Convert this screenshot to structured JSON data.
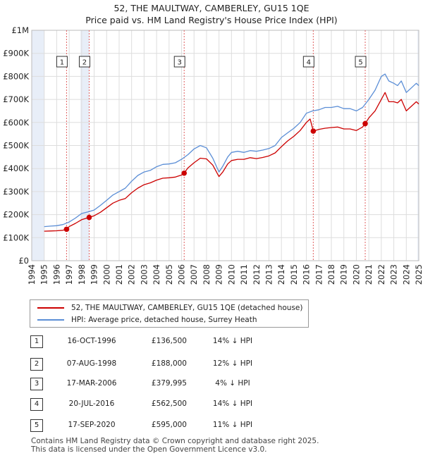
{
  "header": {
    "title": "52, THE MAULTWAY, CAMBERLEY, GU15 1QE",
    "subtitle": "Price paid vs. HM Land Registry's House Price Index (HPI)"
  },
  "colors": {
    "property": "#cc0000",
    "hpi": "#5b8ed6",
    "marker_line": "#e06060",
    "shade": "#e8eef8"
  },
  "legend": {
    "property_label": "52, THE MAULTWAY, CAMBERLEY, GU15 1QE (detached house)",
    "hpi_label": "HPI: Average price, detached house, Surrey Heath"
  },
  "chart_data": {
    "type": "line",
    "title": "52, THE MAULTWAY, CAMBERLEY, GU15 1QE",
    "xlim": [
      1994,
      2025
    ],
    "ylim": [
      0,
      1000000
    ],
    "y_ticks": [
      0,
      100000,
      200000,
      300000,
      400000,
      500000,
      600000,
      700000,
      800000,
      900000,
      1000000
    ],
    "y_tick_labels": [
      "£0",
      "£100K",
      "£200K",
      "£300K",
      "£400K",
      "£500K",
      "£600K",
      "£700K",
      "£800K",
      "£900K",
      "£1M"
    ],
    "x_ticks": [
      1994,
      1995,
      1996,
      1997,
      1998,
      1999,
      2000,
      2001,
      2002,
      2003,
      2004,
      2005,
      2006,
      2007,
      2008,
      2009,
      2010,
      2011,
      2012,
      2013,
      2014,
      2015,
      2016,
      2017,
      2018,
      2019,
      2020,
      2021,
      2022,
      2023,
      2024,
      2025
    ],
    "grid": true,
    "shaded_ranges": [
      [
        1994,
        1995
      ],
      [
        1997.9,
        1998.6
      ],
      [
        2024.9,
        2025
      ]
    ],
    "series": [
      {
        "name": "HPI: Average price, detached house, Surrey Heath",
        "x": [
          1995,
          1995.5,
          1996,
          1996.5,
          1997,
          1997.5,
          1998,
          1998.5,
          1999,
          1999.5,
          2000,
          2000.5,
          2001,
          2001.5,
          2002,
          2002.5,
          2003,
          2003.5,
          2004,
          2004.5,
          2005,
          2005.5,
          2006,
          2006.5,
          2007,
          2007.5,
          2008,
          2008.5,
          2009,
          2009.3,
          2009.7,
          2010,
          2010.5,
          2011,
          2011.5,
          2012,
          2012.5,
          2013,
          2013.5,
          2014,
          2014.5,
          2015,
          2015.5,
          2016,
          2016.5,
          2017,
          2017.5,
          2018,
          2018.5,
          2019,
          2019.5,
          2020,
          2020.5,
          2021,
          2021.5,
          2022,
          2022.3,
          2022.6,
          2023,
          2023.3,
          2023.6,
          2024,
          2024.4,
          2024.8,
          2025
        ],
        "values": [
          148000,
          150000,
          152000,
          157000,
          168000,
          185000,
          205000,
          212000,
          220000,
          240000,
          262000,
          285000,
          300000,
          315000,
          345000,
          370000,
          385000,
          392000,
          408000,
          418000,
          420000,
          425000,
          440000,
          460000,
          485000,
          500000,
          490000,
          445000,
          385000,
          410000,
          450000,
          470000,
          475000,
          470000,
          478000,
          475000,
          480000,
          487000,
          500000,
          535000,
          555000,
          575000,
          600000,
          640000,
          650000,
          655000,
          665000,
          665000,
          670000,
          660000,
          660000,
          650000,
          665000,
          700000,
          740000,
          800000,
          810000,
          780000,
          770000,
          760000,
          780000,
          730000,
          750000,
          770000,
          760000
        ]
      },
      {
        "name": "52, THE MAULTWAY, CAMBERLEY, GU15 1QE (detached house)",
        "x": [
          1995,
          1995.5,
          1996,
          1996.5,
          1996.79,
          1997,
          1997.5,
          1998,
          1998.6,
          1999,
          1999.5,
          2000,
          2000.5,
          2001,
          2001.5,
          2002,
          2002.5,
          2003,
          2003.5,
          2004,
          2004.5,
          2005,
          2005.5,
          2006,
          2006.21,
          2006.5,
          2007,
          2007.5,
          2008,
          2008.5,
          2009,
          2009.3,
          2009.7,
          2010,
          2010.5,
          2011,
          2011.5,
          2012,
          2012.5,
          2013,
          2013.5,
          2014,
          2014.5,
          2015,
          2015.5,
          2016,
          2016.3,
          2016.55,
          2017,
          2017.5,
          2018,
          2018.5,
          2019,
          2019.5,
          2020,
          2020.5,
          2020.71,
          2021,
          2021.5,
          2022,
          2022.3,
          2022.6,
          2023,
          2023.3,
          2023.6,
          2024,
          2024.4,
          2024.8,
          2025
        ],
        "values": [
          128000,
          129000,
          130000,
          132000,
          136500,
          148000,
          162000,
          178000,
          188000,
          195000,
          210000,
          230000,
          250000,
          262000,
          270000,
          295000,
          315000,
          330000,
          338000,
          350000,
          358000,
          360000,
          363000,
          372000,
          379995,
          402000,
          425000,
          445000,
          442000,
          415000,
          365000,
          385000,
          420000,
          435000,
          440000,
          440000,
          447000,
          443000,
          448000,
          455000,
          468000,
          495000,
          520000,
          540000,
          565000,
          600000,
          615000,
          562500,
          570000,
          575000,
          578000,
          580000,
          572000,
          572000,
          565000,
          580000,
          595000,
          620000,
          650000,
          700000,
          730000,
          690000,
          690000,
          685000,
          700000,
          650000,
          670000,
          690000,
          680000
        ]
      }
    ],
    "sales": [
      {
        "id": "1",
        "x": 1996.79,
        "value": 136500
      },
      {
        "id": "2",
        "x": 1998.6,
        "value": 188000
      },
      {
        "id": "3",
        "x": 2006.21,
        "value": 379995
      },
      {
        "id": "4",
        "x": 2016.55,
        "value": 562500
      },
      {
        "id": "5",
        "x": 2020.71,
        "value": 595000
      }
    ]
  },
  "sales_table": [
    {
      "num": "1",
      "date": "16-OCT-1996",
      "price": "£136,500",
      "hpi": "14% ↓ HPI"
    },
    {
      "num": "2",
      "date": "07-AUG-1998",
      "price": "£188,000",
      "hpi": "12% ↓ HPI"
    },
    {
      "num": "3",
      "date": "17-MAR-2006",
      "price": "£379,995",
      "hpi": "4% ↓ HPI"
    },
    {
      "num": "4",
      "date": "20-JUL-2016",
      "price": "£562,500",
      "hpi": "14% ↓ HPI"
    },
    {
      "num": "5",
      "date": "17-SEP-2020",
      "price": "£595,000",
      "hpi": "11% ↓ HPI"
    }
  ],
  "footer": {
    "line1": "Contains HM Land Registry data © Crown copyright and database right 2025.",
    "line2": "This data is licensed under the Open Government Licence v3.0."
  }
}
